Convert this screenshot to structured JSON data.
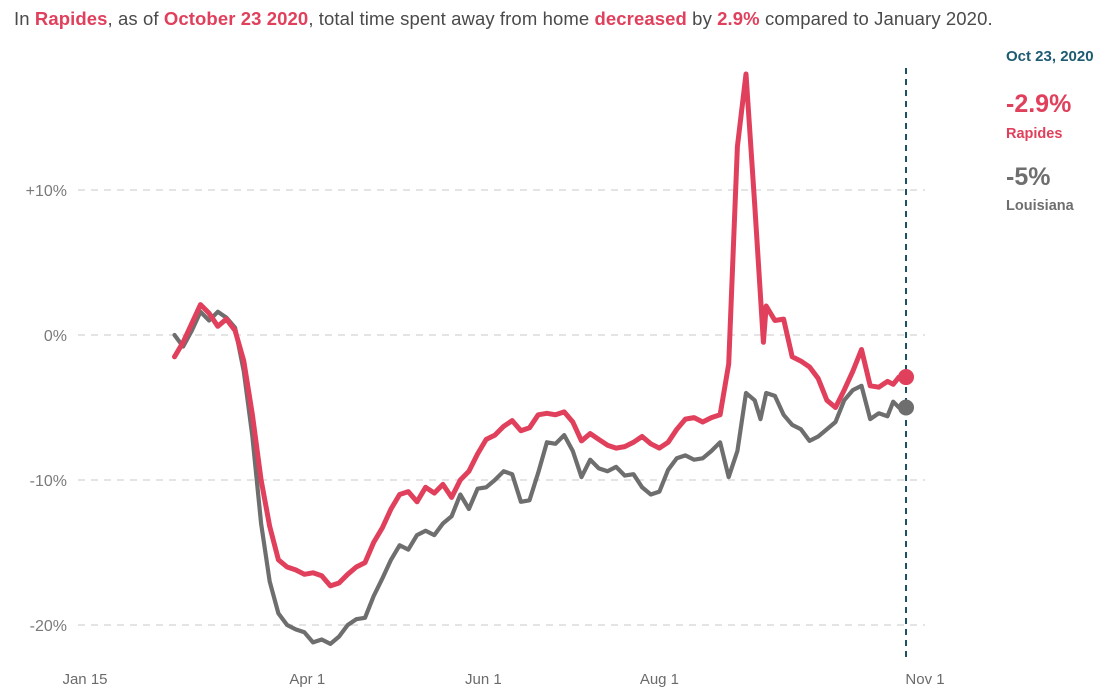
{
  "headline": {
    "prefix": "In ",
    "place": "Rapides",
    "as_of": ", as of ",
    "date": "October 23 2020",
    "mid": ", total time spent away from home ",
    "direction": "decreased",
    "by": " by ",
    "pct": "2.9%",
    "suffix": " compared to January 2020."
  },
  "side_panel": {
    "date": "Oct 23, 2020",
    "primary_value": "-2.9%",
    "primary_name": "Rapides",
    "secondary_value": "-5%",
    "secondary_name": "Louisiana"
  },
  "colors": {
    "rapides": "#e0405c",
    "louisiana": "#6e6e6e",
    "marker_line": "#1d4f66",
    "grid": "#d4d4d4"
  },
  "chart_data": {
    "type": "line",
    "title": "",
    "xlabel": "",
    "ylabel": "",
    "x_range": [
      "2020-01-15",
      "2020-11-01"
    ],
    "ylim": [
      -20,
      20
    ],
    "y_ticks": [
      {
        "value": 10,
        "label": "+10%"
      },
      {
        "value": 0,
        "label": "0%"
      },
      {
        "value": -10,
        "label": "-10%"
      },
      {
        "value": -20,
        "label": "-20%"
      }
    ],
    "x_ticks": [
      {
        "date": "2020-01-15",
        "label": "Jan 15"
      },
      {
        "date": "2020-04-01",
        "label": "Apr 1"
      },
      {
        "date": "2020-06-01",
        "label": "Jun 1"
      },
      {
        "date": "2020-08-01",
        "label": "Aug 1"
      },
      {
        "date": "2020-11-01",
        "label": "Nov 1"
      }
    ],
    "grid": true,
    "marker_date": "2020-10-23",
    "series": [
      {
        "name": "Rapides",
        "points": [
          [
            "2020-02-15",
            -1.5
          ],
          [
            "2020-02-18",
            -0.5
          ],
          [
            "2020-02-21",
            0.8
          ],
          [
            "2020-02-24",
            2.1
          ],
          [
            "2020-02-27",
            1.5
          ],
          [
            "2020-03-01",
            0.6
          ],
          [
            "2020-03-04",
            1.1
          ],
          [
            "2020-03-07",
            0.3
          ],
          [
            "2020-03-10",
            -1.8
          ],
          [
            "2020-03-13",
            -5.5
          ],
          [
            "2020-03-16",
            -10.0
          ],
          [
            "2020-03-19",
            -13.2
          ],
          [
            "2020-03-22",
            -15.5
          ],
          [
            "2020-03-25",
            -16.0
          ],
          [
            "2020-03-28",
            -16.2
          ],
          [
            "2020-03-31",
            -16.5
          ],
          [
            "2020-04-03",
            -16.4
          ],
          [
            "2020-04-06",
            -16.6
          ],
          [
            "2020-04-09",
            -17.3
          ],
          [
            "2020-04-12",
            -17.1
          ],
          [
            "2020-04-15",
            -16.5
          ],
          [
            "2020-04-18",
            -16.0
          ],
          [
            "2020-04-21",
            -15.7
          ],
          [
            "2020-04-24",
            -14.3
          ],
          [
            "2020-04-27",
            -13.3
          ],
          [
            "2020-04-30",
            -12.0
          ],
          [
            "2020-05-03",
            -11.0
          ],
          [
            "2020-05-06",
            -10.8
          ],
          [
            "2020-05-09",
            -11.5
          ],
          [
            "2020-05-12",
            -10.5
          ],
          [
            "2020-05-15",
            -10.9
          ],
          [
            "2020-05-18",
            -10.3
          ],
          [
            "2020-05-21",
            -11.2
          ],
          [
            "2020-05-24",
            -10.0
          ],
          [
            "2020-05-27",
            -9.4
          ],
          [
            "2020-05-30",
            -8.2
          ],
          [
            "2020-06-02",
            -7.2
          ],
          [
            "2020-06-05",
            -6.9
          ],
          [
            "2020-06-08",
            -6.3
          ],
          [
            "2020-06-11",
            -5.9
          ],
          [
            "2020-06-14",
            -6.6
          ],
          [
            "2020-06-17",
            -6.4
          ],
          [
            "2020-06-20",
            -5.5
          ],
          [
            "2020-06-23",
            -5.4
          ],
          [
            "2020-06-26",
            -5.5
          ],
          [
            "2020-06-29",
            -5.3
          ],
          [
            "2020-07-02",
            -6.0
          ],
          [
            "2020-07-05",
            -7.3
          ],
          [
            "2020-07-08",
            -6.8
          ],
          [
            "2020-07-11",
            -7.2
          ],
          [
            "2020-07-14",
            -7.6
          ],
          [
            "2020-07-17",
            -7.8
          ],
          [
            "2020-07-20",
            -7.7
          ],
          [
            "2020-07-23",
            -7.4
          ],
          [
            "2020-07-26",
            -7.0
          ],
          [
            "2020-07-29",
            -7.5
          ],
          [
            "2020-08-01",
            -7.8
          ],
          [
            "2020-08-04",
            -7.4
          ],
          [
            "2020-08-07",
            -6.5
          ],
          [
            "2020-08-10",
            -5.8
          ],
          [
            "2020-08-13",
            -5.7
          ],
          [
            "2020-08-16",
            -6.0
          ],
          [
            "2020-08-19",
            -5.7
          ],
          [
            "2020-08-22",
            -5.5
          ],
          [
            "2020-08-25",
            -2.0
          ],
          [
            "2020-08-28",
            13.0
          ],
          [
            "2020-08-31",
            18.0
          ],
          [
            "2020-09-03",
            9.0
          ],
          [
            "2020-09-06",
            -0.5
          ],
          [
            "2020-09-07",
            2.0
          ],
          [
            "2020-09-10",
            1.0
          ],
          [
            "2020-09-13",
            1.1
          ],
          [
            "2020-09-16",
            -1.5
          ],
          [
            "2020-09-19",
            -1.8
          ],
          [
            "2020-09-22",
            -2.2
          ],
          [
            "2020-09-25",
            -3.0
          ],
          [
            "2020-09-28",
            -4.5
          ],
          [
            "2020-10-01",
            -5.0
          ],
          [
            "2020-10-04",
            -3.8
          ],
          [
            "2020-10-07",
            -2.5
          ],
          [
            "2020-10-10",
            -1.0
          ],
          [
            "2020-10-13",
            -3.5
          ],
          [
            "2020-10-16",
            -3.6
          ],
          [
            "2020-10-19",
            -3.2
          ],
          [
            "2020-10-21",
            -3.4
          ],
          [
            "2020-10-23",
            -2.9
          ]
        ]
      },
      {
        "name": "Louisiana",
        "points": [
          [
            "2020-02-15",
            0.0
          ],
          [
            "2020-02-18",
            -0.8
          ],
          [
            "2020-02-21",
            0.3
          ],
          [
            "2020-02-24",
            1.6
          ],
          [
            "2020-02-27",
            1.0
          ],
          [
            "2020-03-01",
            1.6
          ],
          [
            "2020-03-04",
            1.2
          ],
          [
            "2020-03-07",
            0.5
          ],
          [
            "2020-03-10",
            -2.5
          ],
          [
            "2020-03-13",
            -7.0
          ],
          [
            "2020-03-16",
            -13.0
          ],
          [
            "2020-03-19",
            -17.0
          ],
          [
            "2020-03-22",
            -19.2
          ],
          [
            "2020-03-25",
            -20.0
          ],
          [
            "2020-03-28",
            -20.3
          ],
          [
            "2020-03-31",
            -20.5
          ],
          [
            "2020-04-03",
            -21.2
          ],
          [
            "2020-04-06",
            -21.0
          ],
          [
            "2020-04-09",
            -21.3
          ],
          [
            "2020-04-12",
            -20.8
          ],
          [
            "2020-04-15",
            -20.0
          ],
          [
            "2020-04-18",
            -19.6
          ],
          [
            "2020-04-21",
            -19.5
          ],
          [
            "2020-04-24",
            -18.0
          ],
          [
            "2020-04-27",
            -16.8
          ],
          [
            "2020-04-30",
            -15.5
          ],
          [
            "2020-05-03",
            -14.5
          ],
          [
            "2020-05-06",
            -14.8
          ],
          [
            "2020-05-09",
            -13.8
          ],
          [
            "2020-05-12",
            -13.5
          ],
          [
            "2020-05-15",
            -13.8
          ],
          [
            "2020-05-18",
            -13.0
          ],
          [
            "2020-05-21",
            -12.5
          ],
          [
            "2020-05-24",
            -11.0
          ],
          [
            "2020-05-27",
            -12.0
          ],
          [
            "2020-05-30",
            -10.6
          ],
          [
            "2020-06-02",
            -10.5
          ],
          [
            "2020-06-05",
            -10.0
          ],
          [
            "2020-06-08",
            -9.4
          ],
          [
            "2020-06-11",
            -9.6
          ],
          [
            "2020-06-14",
            -11.5
          ],
          [
            "2020-06-17",
            -11.4
          ],
          [
            "2020-06-20",
            -9.5
          ],
          [
            "2020-06-23",
            -7.4
          ],
          [
            "2020-06-26",
            -7.5
          ],
          [
            "2020-06-29",
            -6.9
          ],
          [
            "2020-07-02",
            -8.0
          ],
          [
            "2020-07-05",
            -9.8
          ],
          [
            "2020-07-08",
            -8.6
          ],
          [
            "2020-07-11",
            -9.2
          ],
          [
            "2020-07-14",
            -9.4
          ],
          [
            "2020-07-17",
            -9.1
          ],
          [
            "2020-07-20",
            -9.7
          ],
          [
            "2020-07-23",
            -9.6
          ],
          [
            "2020-07-26",
            -10.5
          ],
          [
            "2020-07-29",
            -11.0
          ],
          [
            "2020-08-01",
            -10.8
          ],
          [
            "2020-08-04",
            -9.3
          ],
          [
            "2020-08-07",
            -8.5
          ],
          [
            "2020-08-10",
            -8.3
          ],
          [
            "2020-08-13",
            -8.6
          ],
          [
            "2020-08-16",
            -8.5
          ],
          [
            "2020-08-19",
            -8.0
          ],
          [
            "2020-08-22",
            -7.4
          ],
          [
            "2020-08-25",
            -9.8
          ],
          [
            "2020-08-28",
            -8.0
          ],
          [
            "2020-08-31",
            -4.0
          ],
          [
            "2020-09-03",
            -4.5
          ],
          [
            "2020-09-05",
            -5.8
          ],
          [
            "2020-09-07",
            -4.0
          ],
          [
            "2020-09-10",
            -4.2
          ],
          [
            "2020-09-13",
            -5.5
          ],
          [
            "2020-09-16",
            -6.2
          ],
          [
            "2020-09-19",
            -6.5
          ],
          [
            "2020-09-22",
            -7.3
          ],
          [
            "2020-09-25",
            -7.0
          ],
          [
            "2020-09-28",
            -6.5
          ],
          [
            "2020-10-01",
            -6.0
          ],
          [
            "2020-10-04",
            -4.5
          ],
          [
            "2020-10-07",
            -3.8
          ],
          [
            "2020-10-10",
            -3.5
          ],
          [
            "2020-10-13",
            -5.8
          ],
          [
            "2020-10-16",
            -5.4
          ],
          [
            "2020-10-19",
            -5.6
          ],
          [
            "2020-10-21",
            -4.6
          ],
          [
            "2020-10-23",
            -5.0
          ]
        ]
      }
    ]
  }
}
